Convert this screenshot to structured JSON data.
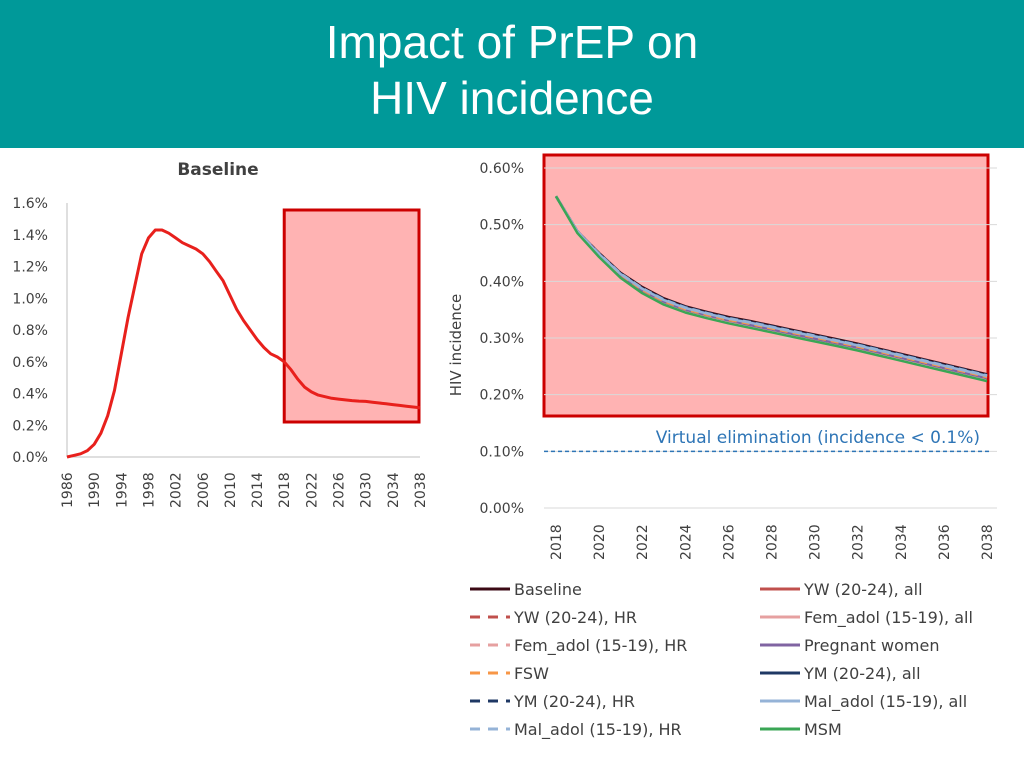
{
  "slide": {
    "title_line1": "Impact of PrEP on",
    "title_line2": "HIV incidence",
    "banner_color": "#009999"
  },
  "chart_data": [
    {
      "type": "line",
      "title": "Baseline",
      "xlabel": "",
      "ylabel": "",
      "x_ticks": [
        "1986",
        "1990",
        "1994",
        "1998",
        "2002",
        "2006",
        "2010",
        "2014",
        "2018",
        "2022",
        "2026",
        "2030",
        "2034",
        "2038"
      ],
      "y_ticks": [
        "0.0%",
        "0.2%",
        "0.4%",
        "0.6%",
        "0.8%",
        "1.0%",
        "1.2%",
        "1.4%",
        "1.6%"
      ],
      "xlim": [
        1986,
        2038
      ],
      "ylim": [
        0,
        1.6
      ],
      "series": [
        {
          "name": "Baseline",
          "color": "#e8201c",
          "x": [
            1986,
            1987,
            1988,
            1989,
            1990,
            1991,
            1992,
            1993,
            1994,
            1995,
            1996,
            1997,
            1998,
            1999,
            2000,
            2001,
            2002,
            2003,
            2004,
            2005,
            2006,
            2007,
            2008,
            2009,
            2010,
            2011,
            2012,
            2013,
            2014,
            2015,
            2016,
            2017,
            2018,
            2019,
            2020,
            2021,
            2022,
            2023,
            2024,
            2025,
            2026,
            2027,
            2028,
            2029,
            2030,
            2031,
            2032,
            2033,
            2034,
            2035,
            2036,
            2037,
            2038
          ],
          "values": [
            0.0,
            0.01,
            0.02,
            0.04,
            0.08,
            0.15,
            0.26,
            0.42,
            0.65,
            0.88,
            1.08,
            1.28,
            1.38,
            1.43,
            1.43,
            1.41,
            1.38,
            1.35,
            1.33,
            1.31,
            1.28,
            1.23,
            1.17,
            1.11,
            1.02,
            0.93,
            0.86,
            0.8,
            0.74,
            0.69,
            0.65,
            0.63,
            0.6,
            0.55,
            0.49,
            0.44,
            0.41,
            0.39,
            0.38,
            0.37,
            0.365,
            0.36,
            0.355,
            0.352,
            0.35,
            0.345,
            0.34,
            0.335,
            0.33,
            0.325,
            0.32,
            0.315,
            0.31
          ]
        }
      ],
      "highlight": {
        "x_range": [
          2018,
          2038
        ],
        "color": "#ffb3b3",
        "border_color": "#cc0000"
      }
    },
    {
      "type": "line",
      "title": "",
      "xlabel": "",
      "ylabel": "HIV incidence",
      "x_ticks": [
        "2018",
        "2020",
        "2022",
        "2024",
        "2026",
        "2028",
        "2030",
        "2032",
        "2034",
        "2036",
        "2038"
      ],
      "y_ticks": [
        "0.00%",
        "0.10%",
        "0.20%",
        "0.30%",
        "0.40%",
        "0.50%",
        "0.60%"
      ],
      "xlim": [
        2018,
        2038
      ],
      "ylim": [
        0,
        0.6
      ],
      "reference_line": {
        "y": 0.1,
        "label": "Virtual elimination (incidence < 0.1%)",
        "color": "#2e75b6"
      },
      "highlight_color": "#ffb3b3",
      "highlight_border": "#cc0000",
      "x": [
        2018,
        2019,
        2020,
        2021,
        2022,
        2023,
        2024,
        2025,
        2026,
        2027,
        2028,
        2029,
        2030,
        2031,
        2032,
        2033,
        2034,
        2035,
        2036,
        2037,
        2038
      ],
      "series": [
        {
          "name": "Baseline",
          "color": "#3b0a14",
          "dash": "solid",
          "values": [
            0.55,
            0.488,
            0.45,
            0.415,
            0.39,
            0.37,
            0.356,
            0.346,
            0.337,
            0.33,
            0.322,
            0.314,
            0.306,
            0.298,
            0.29,
            0.281,
            0.272,
            0.263,
            0.254,
            0.245,
            0.236
          ]
        },
        {
          "name": "YW (20-24), all",
          "color": "#c0504d",
          "dash": "solid",
          "values": [
            0.55,
            0.488,
            0.448,
            0.413,
            0.387,
            0.367,
            0.353,
            0.343,
            0.334,
            0.327,
            0.319,
            0.311,
            0.303,
            0.295,
            0.287,
            0.278,
            0.269,
            0.26,
            0.251,
            0.242,
            0.233
          ]
        },
        {
          "name": "YW (20-24), HR",
          "color": "#c0504d",
          "dash": "dashed",
          "values": [
            0.55,
            0.488,
            0.449,
            0.414,
            0.388,
            0.368,
            0.354,
            0.344,
            0.335,
            0.328,
            0.32,
            0.312,
            0.304,
            0.296,
            0.288,
            0.279,
            0.27,
            0.261,
            0.252,
            0.243,
            0.234
          ]
        },
        {
          "name": "Fem_adol (15-19), all",
          "color": "#e6a0a0",
          "dash": "solid",
          "values": [
            0.55,
            0.487,
            0.447,
            0.412,
            0.386,
            0.366,
            0.352,
            0.342,
            0.333,
            0.326,
            0.318,
            0.31,
            0.302,
            0.294,
            0.286,
            0.277,
            0.268,
            0.259,
            0.25,
            0.241,
            0.232
          ]
        },
        {
          "name": "Fem_adol (15-19), HR",
          "color": "#e6a0a0",
          "dash": "dashed",
          "values": [
            0.55,
            0.488,
            0.448,
            0.413,
            0.387,
            0.367,
            0.353,
            0.343,
            0.334,
            0.327,
            0.319,
            0.311,
            0.303,
            0.295,
            0.287,
            0.278,
            0.269,
            0.26,
            0.251,
            0.242,
            0.233
          ]
        },
        {
          "name": "Pregnant women",
          "color": "#8064a2",
          "dash": "solid",
          "values": [
            0.55,
            0.487,
            0.446,
            0.411,
            0.384,
            0.364,
            0.35,
            0.34,
            0.331,
            0.323,
            0.315,
            0.307,
            0.299,
            0.291,
            0.283,
            0.274,
            0.265,
            0.256,
            0.247,
            0.238,
            0.229
          ]
        },
        {
          "name": "FSW",
          "color": "#f79646",
          "dash": "dashed",
          "values": [
            0.55,
            0.487,
            0.447,
            0.412,
            0.385,
            0.365,
            0.351,
            0.341,
            0.332,
            0.325,
            0.317,
            0.309,
            0.301,
            0.293,
            0.285,
            0.276,
            0.267,
            0.258,
            0.249,
            0.24,
            0.231
          ]
        },
        {
          "name": "YM (20-24), all",
          "color": "#1f3864",
          "dash": "solid",
          "values": [
            0.55,
            0.488,
            0.449,
            0.414,
            0.388,
            0.368,
            0.354,
            0.344,
            0.335,
            0.328,
            0.32,
            0.312,
            0.304,
            0.296,
            0.288,
            0.279,
            0.27,
            0.261,
            0.252,
            0.243,
            0.234
          ]
        },
        {
          "name": "YM (20-24), HR",
          "color": "#1f3864",
          "dash": "dashed",
          "values": [
            0.55,
            0.488,
            0.449,
            0.414,
            0.388,
            0.369,
            0.355,
            0.345,
            0.336,
            0.329,
            0.321,
            0.313,
            0.305,
            0.297,
            0.289,
            0.28,
            0.271,
            0.262,
            0.253,
            0.244,
            0.235
          ]
        },
        {
          "name": "Mal_adol (15-19), all",
          "color": "#95b3d7",
          "dash": "solid",
          "values": [
            0.55,
            0.488,
            0.448,
            0.413,
            0.387,
            0.367,
            0.353,
            0.343,
            0.334,
            0.327,
            0.319,
            0.311,
            0.303,
            0.295,
            0.287,
            0.278,
            0.269,
            0.26,
            0.251,
            0.242,
            0.233
          ]
        },
        {
          "name": "Mal_adol (15-19), HR",
          "color": "#95b3d7",
          "dash": "dashed",
          "values": [
            0.55,
            0.488,
            0.449,
            0.414,
            0.388,
            0.368,
            0.354,
            0.344,
            0.335,
            0.328,
            0.32,
            0.312,
            0.304,
            0.296,
            0.288,
            0.279,
            0.27,
            0.261,
            0.252,
            0.243,
            0.234
          ]
        },
        {
          "name": "MSM",
          "color": "#3aa655",
          "dash": "solid",
          "values": [
            0.55,
            0.485,
            0.443,
            0.406,
            0.379,
            0.359,
            0.345,
            0.335,
            0.326,
            0.318,
            0.31,
            0.302,
            0.294,
            0.286,
            0.278,
            0.269,
            0.26,
            0.251,
            0.242,
            0.233,
            0.224
          ]
        }
      ],
      "legend": [
        {
          "label": "Baseline",
          "color": "#3b0a14",
          "dash": "solid"
        },
        {
          "label": "YW (20-24), all",
          "color": "#c0504d",
          "dash": "solid"
        },
        {
          "label": "YW (20-24), HR",
          "color": "#c0504d",
          "dash": "dashed"
        },
        {
          "label": "Fem_adol (15-19), all",
          "color": "#e6a0a0",
          "dash": "solid"
        },
        {
          "label": "Fem_adol (15-19), HR",
          "color": "#e6a0a0",
          "dash": "dashed"
        },
        {
          "label": "Pregnant women",
          "color": "#8064a2",
          "dash": "solid"
        },
        {
          "label": "FSW",
          "color": "#f79646",
          "dash": "dashed"
        },
        {
          "label": "YM (20-24), all",
          "color": "#1f3864",
          "dash": "solid"
        },
        {
          "label": "YM (20-24), HR",
          "color": "#1f3864",
          "dash": "dashed"
        },
        {
          "label": "Mal_adol (15-19), all",
          "color": "#95b3d7",
          "dash": "solid"
        },
        {
          "label": "Mal_adol (15-19), HR",
          "color": "#95b3d7",
          "dash": "dashed"
        },
        {
          "label": "MSM",
          "color": "#3aa655",
          "dash": "solid"
        }
      ],
      "legend_position": "bottom"
    }
  ]
}
